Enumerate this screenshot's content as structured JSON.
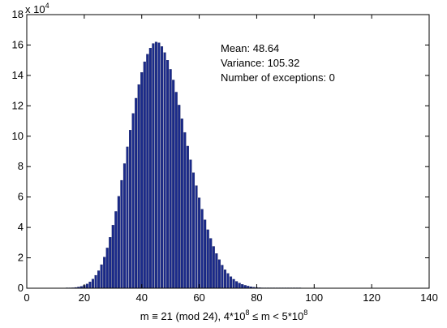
{
  "chart_data": {
    "type": "bar",
    "title": "",
    "xlabel": "m ≡ 21 (mod 24),  4*10",
    "xlabel_sup1": "8",
    "xlabel_mid": " ≤  m  < 5*10",
    "xlabel_sup2": "8",
    "ylabel": "",
    "y_multiplier_base": "x 10",
    "y_multiplier_exp": "4",
    "xlim": [
      0,
      140
    ],
    "ylim": [
      0,
      18
    ],
    "xticks": [
      0,
      20,
      40,
      60,
      80,
      100,
      120,
      140
    ],
    "yticks": [
      0,
      2,
      4,
      6,
      8,
      10,
      12,
      14,
      16,
      18
    ],
    "bar_color": "#1a2a8a",
    "bar_edge": "#0a1450",
    "grid": false,
    "annotations": [
      "Mean: 48.64",
      "Variance: 105.32",
      "Number of exceptions: 0"
    ],
    "x": [
      14,
      15,
      16,
      17,
      18,
      19,
      20,
      21,
      22,
      23,
      24,
      25,
      26,
      27,
      28,
      29,
      30,
      31,
      32,
      33,
      34,
      35,
      36,
      37,
      38,
      39,
      40,
      41,
      42,
      43,
      44,
      45,
      46,
      47,
      48,
      49,
      50,
      51,
      52,
      53,
      54,
      55,
      56,
      57,
      58,
      59,
      60,
      61,
      62,
      63,
      64,
      65,
      66,
      67,
      68,
      69,
      70,
      71,
      72,
      73,
      74,
      75,
      76,
      77,
      78,
      79,
      80,
      81,
      82,
      83,
      84,
      85,
      86,
      87,
      88,
      89,
      90,
      91,
      92,
      93,
      94,
      95
    ],
    "values": [
      0.01,
      0.02,
      0.03,
      0.05,
      0.08,
      0.12,
      0.19,
      0.28,
      0.42,
      0.6,
      0.85,
      1.15,
      1.55,
      2.05,
      2.65,
      3.35,
      4.15,
      5.05,
      6.05,
      7.1,
      8.2,
      9.3,
      10.4,
      11.5,
      12.5,
      13.4,
      14.2,
      14.9,
      15.4,
      15.8,
      16.1,
      16.2,
      16.15,
      15.9,
      15.5,
      15.0,
      14.4,
      13.7,
      12.9,
      12.05,
      11.15,
      10.25,
      9.35,
      8.45,
      7.6,
      6.75,
      5.95,
      5.2,
      4.5,
      3.85,
      3.28,
      2.75,
      2.28,
      1.88,
      1.52,
      1.22,
      0.97,
      0.76,
      0.59,
      0.45,
      0.34,
      0.25,
      0.19,
      0.14,
      0.1,
      0.07,
      0.05,
      0.035,
      0.025,
      0.018,
      0.012,
      0.008,
      0.006,
      0.004,
      0.003,
      0.002,
      0.0015,
      0.001,
      0.0008,
      0.0005,
      0.0003,
      0.0002
    ]
  }
}
